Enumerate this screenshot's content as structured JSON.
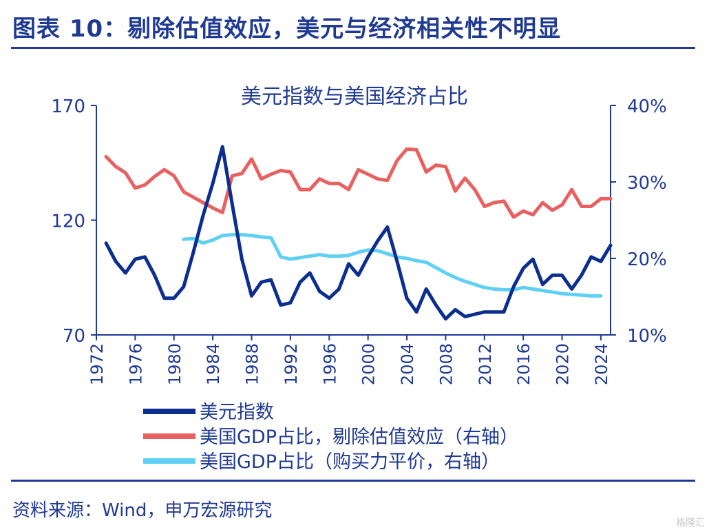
{
  "page": {
    "title": "图表 10：剔除估值效应，美元与经济相关性不明显",
    "source": "资料来源：Wind，申万宏源研究",
    "watermark": "格隆汇"
  },
  "colors": {
    "title": "#1f3a93",
    "axis": "#1f3a93",
    "usd_index": "#0b2e8f",
    "gdp_share_adj": "#e8605f",
    "gdp_share_ppp": "#5fd0f3"
  },
  "chart_data": {
    "type": "line",
    "title": "美元指数与美国经济占比",
    "x_ticks": [
      "1972",
      "1976",
      "1980",
      "1984",
      "1988",
      "1992",
      "1996",
      "2000",
      "2004",
      "2008",
      "2012",
      "2016",
      "2020",
      "2024"
    ],
    "xlim": [
      1972,
      2025
    ],
    "y_left": {
      "lim": [
        70,
        170
      ],
      "ticks": [
        "70",
        "120",
        "170"
      ]
    },
    "y_right": {
      "lim": [
        0.1,
        0.4
      ],
      "ticks": [
        "10%",
        "20%",
        "30%",
        "40%"
      ]
    },
    "grid": false,
    "legend": "bottom",
    "series": [
      {
        "name": "美元指数",
        "axis": "left",
        "color_key": "usd_index",
        "x": [
          1973,
          1974,
          1975,
          1976,
          1977,
          1978,
          1979,
          1980,
          1981,
          1982,
          1983,
          1984,
          1985,
          1986,
          1987,
          1988,
          1989,
          1990,
          1991,
          1992,
          1993,
          1994,
          1995,
          1996,
          1997,
          1998,
          1999,
          2000,
          2001,
          2002,
          2003,
          2004,
          2005,
          2006,
          2007,
          2008,
          2009,
          2010,
          2011,
          2012,
          2013,
          2014,
          2015,
          2016,
          2017,
          2018,
          2019,
          2020,
          2021,
          2022,
          2023,
          2024,
          2025
        ],
        "y": [
          110,
          102,
          97,
          103,
          104,
          96,
          86,
          86,
          91,
          106,
          122,
          136,
          152,
          127,
          103,
          87,
          93,
          94,
          83,
          84,
          93,
          97,
          89,
          86,
          90,
          101,
          96,
          104,
          111,
          117,
          102,
          86,
          80,
          90,
          83,
          77,
          81,
          78,
          79,
          80,
          80,
          80,
          91,
          99,
          103,
          92,
          96,
          96,
          90,
          96,
          104,
          102,
          109
        ]
      },
      {
        "name": "美国GDP占比，剔除估值效应（右轴）",
        "axis": "right",
        "color_key": "gdp_share_adj",
        "x": [
          1973,
          1974,
          1975,
          1976,
          1977,
          1978,
          1979,
          1980,
          1981,
          1982,
          1983,
          1984,
          1985,
          1986,
          1987,
          1988,
          1989,
          1990,
          1991,
          1992,
          1993,
          1994,
          1995,
          1996,
          1997,
          1998,
          1999,
          2000,
          2001,
          2002,
          2003,
          2004,
          2005,
          2006,
          2007,
          2008,
          2009,
          2010,
          2011,
          2012,
          2013,
          2014,
          2015,
          2016,
          2017,
          2018,
          2019,
          2020,
          2021,
          2022,
          2023,
          2024,
          2025
        ],
        "y": [
          0.333,
          0.32,
          0.312,
          0.292,
          0.296,
          0.307,
          0.316,
          0.308,
          0.287,
          0.28,
          0.273,
          0.266,
          0.26,
          0.308,
          0.311,
          0.33,
          0.304,
          0.31,
          0.315,
          0.313,
          0.29,
          0.29,
          0.304,
          0.298,
          0.298,
          0.29,
          0.316,
          0.31,
          0.304,
          0.302,
          0.328,
          0.343,
          0.342,
          0.313,
          0.322,
          0.32,
          0.288,
          0.305,
          0.29,
          0.268,
          0.273,
          0.275,
          0.254,
          0.262,
          0.257,
          0.273,
          0.263,
          0.27,
          0.29,
          0.268,
          0.268,
          0.278,
          0.278
        ]
      },
      {
        "name": "美国GDP占比（购买力平价，右轴）",
        "axis": "right",
        "color_key": "gdp_share_ppp",
        "x": [
          1981,
          1982,
          1983,
          1984,
          1985,
          1986,
          1987,
          1988,
          1989,
          1990,
          1991,
          1992,
          1993,
          1994,
          1995,
          1996,
          1997,
          1998,
          1999,
          2000,
          2001,
          2002,
          2003,
          2004,
          2005,
          2006,
          2007,
          2008,
          2009,
          2010,
          2011,
          2012,
          2013,
          2014,
          2015,
          2016,
          2017,
          2018,
          2019,
          2020,
          2021,
          2022,
          2023,
          2024
        ],
        "y": [
          0.225,
          0.226,
          0.22,
          0.224,
          0.23,
          0.231,
          0.231,
          0.23,
          0.228,
          0.227,
          0.202,
          0.199,
          0.201,
          0.203,
          0.205,
          0.203,
          0.203,
          0.204,
          0.208,
          0.211,
          0.21,
          0.206,
          0.202,
          0.2,
          0.197,
          0.195,
          0.188,
          0.181,
          0.175,
          0.17,
          0.166,
          0.162,
          0.16,
          0.159,
          0.159,
          0.162,
          0.16,
          0.158,
          0.156,
          0.154,
          0.153,
          0.152,
          0.151,
          0.151
        ]
      }
    ]
  }
}
